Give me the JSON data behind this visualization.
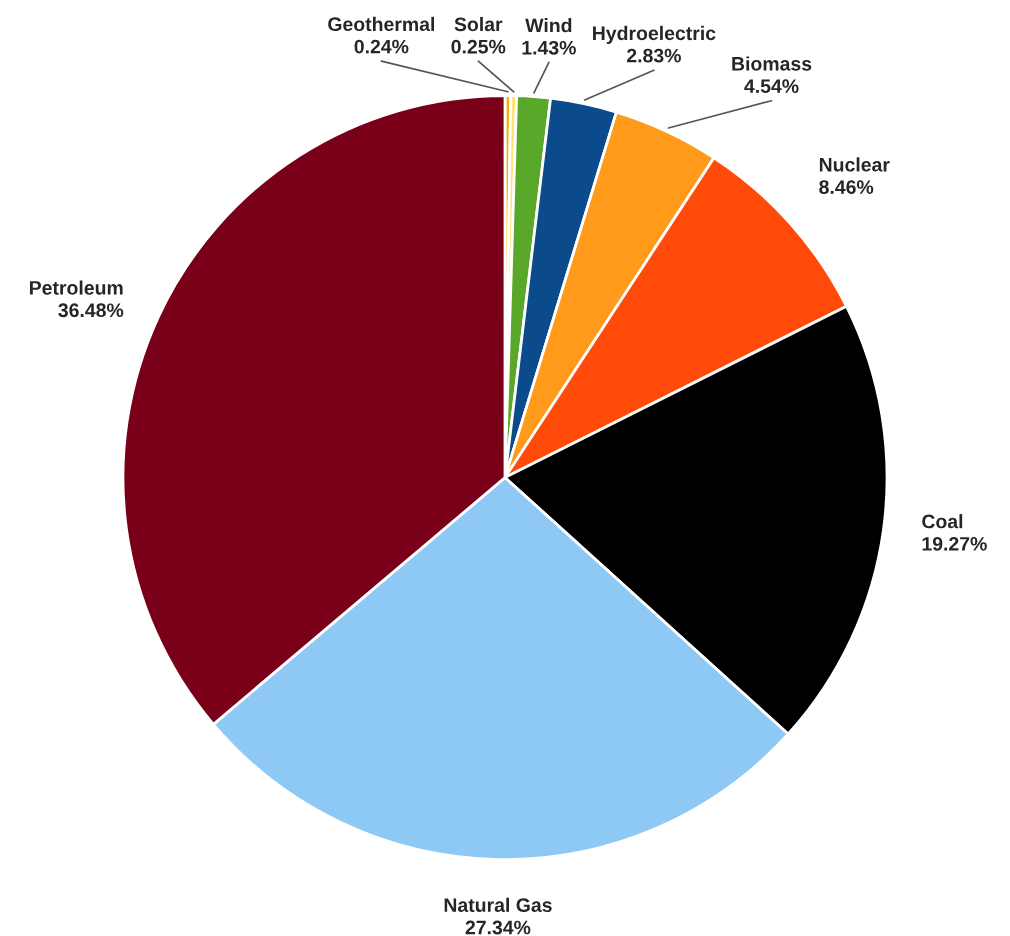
{
  "chart_data": {
    "type": "pie",
    "categories": [
      "Geothermal",
      "Solar",
      "Wind",
      "Hydroelectric",
      "Biomass",
      "Nuclear",
      "Coal",
      "Natural Gas",
      "Petroleum"
    ],
    "values": [
      0.24,
      0.25,
      1.43,
      2.83,
      4.54,
      8.46,
      19.27,
      27.34,
      36.48
    ],
    "value_labels": [
      "0.24%",
      "0.25%",
      "1.43%",
      "2.83%",
      "4.54%",
      "8.46%",
      "19.27%",
      "27.34%",
      "36.48%"
    ],
    "colors": [
      "#f0b400",
      "#ffe27a",
      "#5aa829",
      "#0b4a8b",
      "#ff9a1a",
      "#ff4a0a",
      "#000000",
      "#8ec8f5",
      "#7a0019"
    ]
  }
}
